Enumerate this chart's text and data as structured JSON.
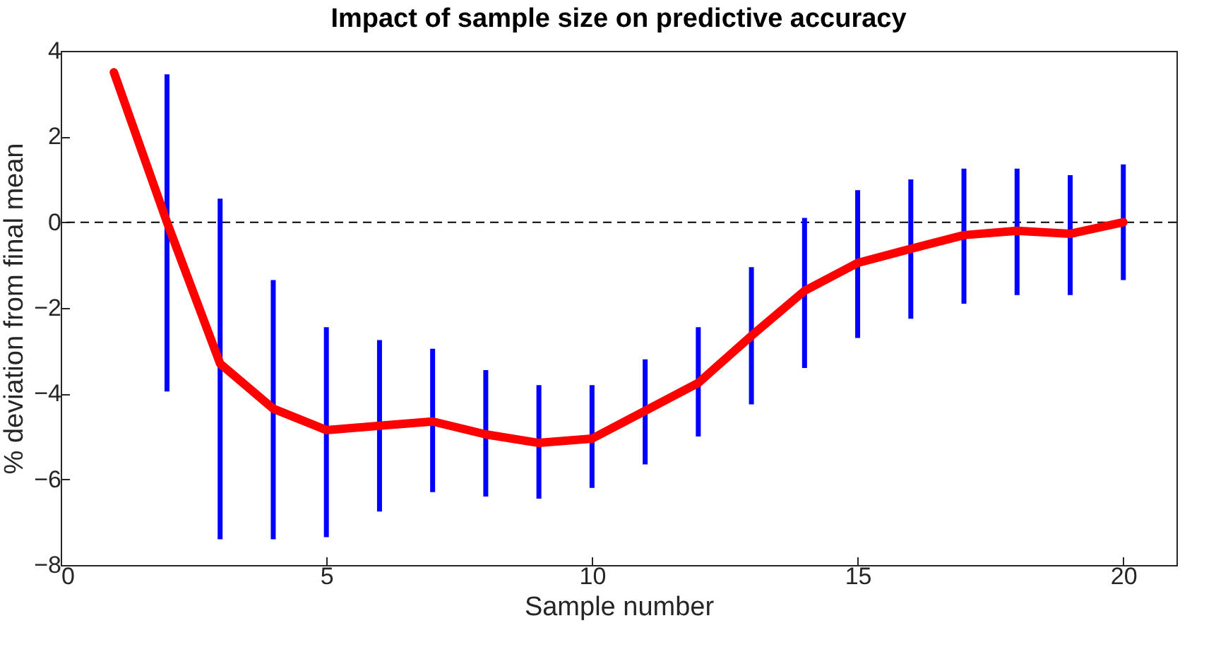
{
  "chart_data": {
    "type": "line",
    "title": "Impact of sample size on predictive accuracy",
    "xlabel": "Sample number",
    "ylabel": "% deviation from final mean",
    "x": [
      1,
      2,
      3,
      4,
      5,
      6,
      7,
      8,
      9,
      10,
      11,
      12,
      13,
      14,
      15,
      16,
      17,
      18,
      19,
      20
    ],
    "series": [
      {
        "color": "#ff0000",
        "values": [
          3.5,
          0,
          -3.3,
          -4.35,
          -4.85,
          -4.75,
          -4.65,
          -4.95,
          -5.15,
          -5.05,
          -4.4,
          -3.75,
          -2.65,
          -1.6,
          -0.95,
          -0.62,
          -0.3,
          -0.2,
          -0.27,
          0
        ],
        "errors": [
          null,
          [
            -3.95,
            3.45
          ],
          [
            -7.4,
            0.55
          ],
          [
            -7.4,
            -1.35
          ],
          [
            -7.35,
            -2.45
          ],
          [
            -6.75,
            -2.75
          ],
          [
            -6.3,
            -2.95
          ],
          [
            -6.4,
            -3.45
          ],
          [
            -6.45,
            -3.8
          ],
          [
            -6.2,
            -3.8
          ],
          [
            -5.65,
            -3.2
          ],
          [
            -5.0,
            -2.45
          ],
          [
            -4.25,
            -1.05
          ],
          [
            -3.4,
            0.1
          ],
          [
            -2.7,
            0.75
          ],
          [
            -2.25,
            1.0
          ],
          [
            -1.9,
            1.25
          ],
          [
            -1.7,
            1.25
          ],
          [
            -1.7,
            1.1
          ],
          [
            -1.35,
            1.35
          ]
        ]
      }
    ],
    "xlim": [
      0,
      21
    ],
    "xticks": [
      0,
      5,
      10,
      15,
      20
    ],
    "ylim": [
      -8,
      4
    ],
    "yticks": [
      -8,
      -6,
      -4,
      -2,
      0,
      2,
      4
    ],
    "ref_lines": [
      {
        "axis": "y",
        "value": 0,
        "color": "#000000",
        "line_style": "dashed"
      }
    ],
    "grid": false,
    "marker": "none",
    "line_style": "solid"
  }
}
